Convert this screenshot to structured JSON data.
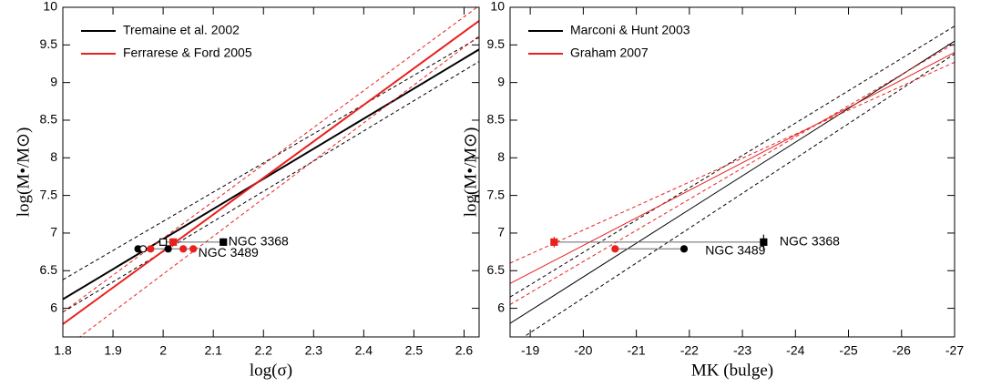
{
  "chart_data": [
    {
      "type": "line",
      "xlabel": "log(σ)",
      "ylabel": "log(M•/M⊙)",
      "xlim": [
        1.8,
        2.63
      ],
      "ylim": [
        5.62,
        10
      ],
      "xticks": [
        1.8,
        1.9,
        2,
        2.1,
        2.2,
        2.3,
        2.4,
        2.5,
        2.6
      ],
      "yticks": [
        6,
        6.5,
        7,
        7.5,
        8,
        8.5,
        9,
        9.5,
        10
      ],
      "legend": "upper left",
      "series": [
        {
          "name": "Tremaine et al. 2002",
          "color": "#000000",
          "width": 2,
          "x": [
            1.8,
            2.63
          ],
          "values": [
            6.12,
            9.44
          ],
          "band_upper": [
            6.38,
            9.6
          ],
          "band_lower": [
            5.95,
            9.28
          ]
        },
        {
          "name": "Ferrarese & Ford 2005",
          "color": "#e8201e",
          "width": 2,
          "x": [
            1.8,
            2.63
          ],
          "values": [
            5.79,
            9.82
          ],
          "band_upper": [
            5.95,
            10.02
          ],
          "band_lower": [
            5.45,
            9.62
          ]
        }
      ],
      "links": [
        {
          "x": [
            2.0,
            2.12
          ],
          "y": 6.88
        },
        {
          "x": [
            1.95,
            2.06
          ],
          "y": 6.79
        }
      ],
      "points": [
        {
          "x": 1.95,
          "y": 6.79,
          "marker": "circle",
          "color": "#000000",
          "filled": true
        },
        {
          "x": 1.96,
          "y": 6.79,
          "marker": "circle",
          "color": "#000000",
          "filled": false
        },
        {
          "x": 2.01,
          "y": 6.79,
          "marker": "circle",
          "color": "#000000",
          "filled": true
        },
        {
          "x": 1.975,
          "y": 6.79,
          "marker": "circle",
          "color": "#e8201e",
          "filled": true
        },
        {
          "x": 2.04,
          "y": 6.79,
          "marker": "circle",
          "color": "#e8201e",
          "filled": true
        },
        {
          "x": 2.06,
          "y": 6.79,
          "marker": "circle",
          "color": "#e8201e",
          "filled": true
        },
        {
          "x": 2.0,
          "y": 6.88,
          "marker": "square",
          "color": "#000000",
          "filled": false
        },
        {
          "x": 2.02,
          "y": 6.88,
          "marker": "square",
          "color": "#e8201e",
          "filled": true,
          "yerr": 0.05
        },
        {
          "x": 2.12,
          "y": 6.88,
          "marker": "square",
          "color": "#000000",
          "filled": true,
          "yerr": 0.05
        }
      ],
      "annotations": [
        {
          "text": "NGC 3368",
          "x": 2.13,
          "y": 6.88
        },
        {
          "text": "NGC 3489",
          "x": 2.07,
          "y": 6.73
        }
      ]
    },
    {
      "type": "line",
      "xlabel": "MK  (bulge)",
      "ylabel": "log(M•/M⊙)",
      "xlim": [
        -18.62,
        -27
      ],
      "ylim": [
        5.62,
        10
      ],
      "xticks": [
        -19,
        -20,
        -21,
        -22,
        -23,
        -24,
        -25,
        -26,
        -27
      ],
      "yticks": [
        6,
        6.5,
        7,
        7.5,
        8,
        8.5,
        9,
        9.5,
        10
      ],
      "legend": "upper left",
      "series": [
        {
          "name": "Marconi & Hunt 2003",
          "color": "#000000",
          "width": 1,
          "x": [
            -18.62,
            -27
          ],
          "values": [
            5.8,
            9.55
          ],
          "band_upper": [
            6.15,
            9.75
          ],
          "band_lower": [
            5.5,
            9.38
          ]
        },
        {
          "name": "Graham 2007",
          "color": "#e8201e",
          "width": 1,
          "x": [
            -18.62,
            -27
          ],
          "values": [
            6.33,
            9.4
          ],
          "band_upper": [
            6.6,
            9.27
          ],
          "band_lower": [
            6.05,
            9.52
          ]
        }
      ],
      "links": [
        {
          "x": [
            -19.45,
            -23.4
          ],
          "y": 6.88
        },
        {
          "x": [
            -20.6,
            -21.9
          ],
          "y": 6.79
        }
      ],
      "points": [
        {
          "x": -19.45,
          "y": 6.88,
          "marker": "square",
          "color": "#e8201e",
          "filled": true,
          "yerr": 0.07
        },
        {
          "x": -23.4,
          "y": 6.88,
          "marker": "square",
          "color": "#000000",
          "filled": true,
          "yerr": 0.1
        },
        {
          "x": -20.6,
          "y": 6.79,
          "marker": "circle",
          "color": "#e8201e",
          "filled": true
        },
        {
          "x": -21.9,
          "y": 6.79,
          "marker": "circle",
          "color": "#000000",
          "filled": true
        }
      ],
      "annotations": [
        {
          "text": "NGC 3368",
          "x": -23.7,
          "y": 6.88
        },
        {
          "text": "NGC 3489",
          "x": -22.3,
          "y": 6.76
        }
      ]
    }
  ]
}
